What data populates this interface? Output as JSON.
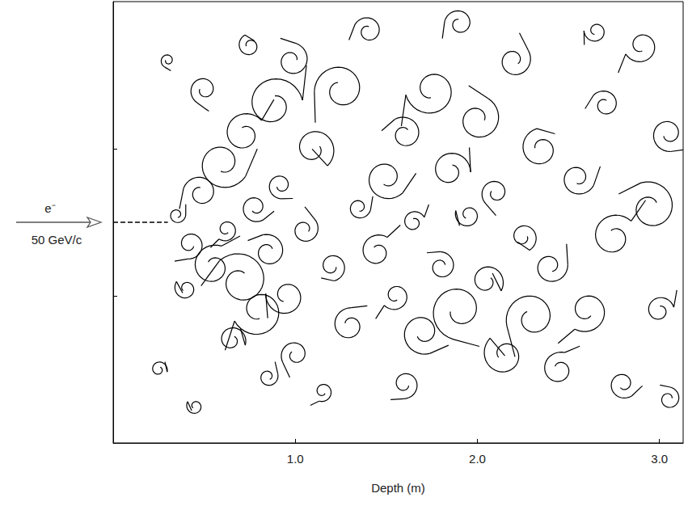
{
  "chart_data": {
    "type": "shower",
    "xlabel": "Depth (m)",
    "annotations": [
      "e⁻",
      "50 GeV/c"
    ],
    "xlim": [
      0,
      3.13
    ],
    "xticks": [
      {
        "value": 1,
        "label": "1.0"
      },
      {
        "value": 2,
        "label": "2.0"
      },
      {
        "value": 3,
        "label": "3.0"
      }
    ],
    "ylim": [
      0,
      3
    ],
    "yticks": [
      1,
      2
    ],
    "tick_labels": "x",
    "grid": false,
    "color": "#000000",
    "beam": {
      "x": [
        0,
        0.3
      ],
      "y": 1.5,
      "line_style": "dashed"
    },
    "tracks": [
      [
        0.35,
        1.55,
        0.06
      ],
      [
        0.42,
        1.35,
        0.1
      ],
      [
        0.48,
        1.7,
        0.12
      ],
      [
        0.55,
        1.2,
        0.15
      ],
      [
        0.6,
        1.9,
        0.18
      ],
      [
        0.62,
        1.45,
        0.08
      ],
      [
        0.7,
        1.1,
        0.2
      ],
      [
        0.72,
        2.1,
        0.15
      ],
      [
        0.78,
        1.6,
        0.1
      ],
      [
        0.8,
        0.9,
        0.18
      ],
      [
        0.85,
        1.3,
        0.12
      ],
      [
        0.88,
        2.3,
        0.2
      ],
      [
        0.92,
        1.75,
        0.09
      ],
      [
        0.95,
        1.0,
        0.14
      ],
      [
        0.98,
        2.6,
        0.12
      ],
      [
        0.65,
        0.7,
        0.1
      ],
      [
        0.5,
        2.4,
        0.1
      ],
      [
        0.4,
        1.05,
        0.08
      ],
      [
        1.05,
        1.45,
        0.1
      ],
      [
        1.1,
        2.0,
        0.15
      ],
      [
        1.0,
        0.6,
        0.1
      ],
      [
        0.75,
        2.7,
        0.08
      ],
      [
        0.85,
        0.45,
        0.07
      ],
      [
        1.2,
        1.2,
        0.1
      ],
      [
        1.25,
        2.4,
        0.18
      ],
      [
        1.3,
        0.8,
        0.12
      ],
      [
        1.35,
        1.6,
        0.08
      ],
      [
        1.15,
        0.35,
        0.07
      ],
      [
        1.4,
        2.8,
        0.1
      ],
      [
        1.45,
        1.3,
        0.12
      ],
      [
        1.5,
        1.8,
        0.15
      ],
      [
        1.55,
        1.0,
        0.1
      ],
      [
        1.6,
        2.1,
        0.12
      ],
      [
        1.65,
        1.5,
        0.08
      ],
      [
        1.7,
        0.75,
        0.15
      ],
      [
        1.75,
        2.4,
        0.18
      ],
      [
        1.8,
        1.2,
        0.1
      ],
      [
        1.85,
        1.85,
        0.14
      ],
      [
        1.9,
        0.9,
        0.2
      ],
      [
        1.95,
        1.55,
        0.09
      ],
      [
        2.0,
        2.2,
        0.16
      ],
      [
        2.05,
        1.1,
        0.12
      ],
      [
        2.1,
        1.7,
        0.1
      ],
      [
        2.15,
        0.6,
        0.15
      ],
      [
        2.2,
        2.6,
        0.12
      ],
      [
        2.25,
        1.4,
        0.1
      ],
      [
        2.3,
        0.85,
        0.18
      ],
      [
        2.35,
        2.0,
        0.14
      ],
      [
        2.4,
        1.2,
        0.12
      ],
      [
        1.6,
        0.4,
        0.1
      ],
      [
        1.9,
        2.85,
        0.1
      ],
      [
        2.45,
        0.5,
        0.12
      ],
      [
        2.55,
        1.8,
        0.12
      ],
      [
        2.6,
        0.9,
        0.15
      ],
      [
        2.7,
        2.3,
        0.1
      ],
      [
        2.75,
        1.4,
        0.16
      ],
      [
        2.8,
        0.4,
        0.1
      ],
      [
        2.9,
        2.7,
        0.12
      ],
      [
        2.95,
        1.6,
        0.18
      ],
      [
        3.0,
        0.9,
        0.1
      ],
      [
        3.05,
        2.1,
        0.12
      ],
      [
        2.65,
        2.8,
        0.08
      ],
      [
        3.05,
        0.3,
        0.08
      ],
      [
        0.25,
        0.5,
        0.06
      ],
      [
        0.3,
        2.6,
        0.05
      ],
      [
        0.45,
        0.25,
        0.06
      ]
    ]
  }
}
